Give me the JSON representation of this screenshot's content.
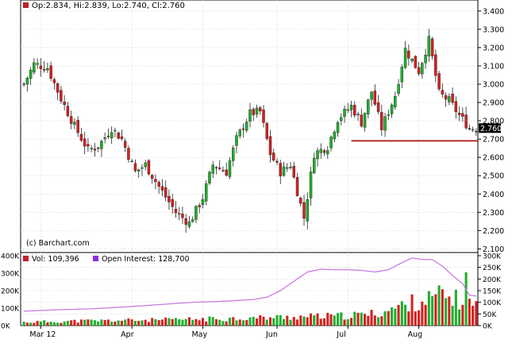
{
  "legend_top": {
    "text": "Op:2.834, Hi:2.839, Lo:2.740, Cl:2.760",
    "swatch_color": "#c0202a"
  },
  "legend_bottom": {
    "volume_text": "Vol: 109,396",
    "oi_text": "Open Interest: 128,700",
    "volume_swatch_color": "#c0202a",
    "oi_swatch_color": "#8a2be2"
  },
  "copyright": "(c) Barchart.com",
  "last_price_label": "2.760",
  "colors": {
    "up": "#1fae2c",
    "down": "#d42020",
    "wick": "#222222",
    "grid": "#c8c8c8",
    "oi_line": "#c97ce0",
    "support_line": "#b52a2a",
    "frame": "#000000"
  },
  "chart_data": [
    {
      "type": "candlestick",
      "title": "",
      "y_ticks": [
        "2.100",
        "2.200",
        "2.300",
        "2.400",
        "2.500",
        "2.600",
        "2.700",
        "2.800",
        "2.900",
        "3.000",
        "3.100",
        "3.200",
        "3.300",
        "3.400"
      ],
      "ylim": [
        2.08,
        3.46
      ],
      "x_ticks": [
        {
          "label": "Mar 12",
          "index": 5
        },
        {
          "label": "Apr",
          "index": 32
        },
        {
          "label": "May",
          "index": 53
        },
        {
          "label": "Jun",
          "index": 75
        },
        {
          "label": "Jul",
          "index": 96
        },
        {
          "label": "Aug",
          "index": 117
        }
      ],
      "n_periods": 135,
      "support_level": 2.69,
      "last_price": 2.76,
      "pivots": [
        [
          0,
          3.0
        ],
        [
          3,
          3.11
        ],
        [
          7,
          3.09
        ],
        [
          11,
          2.92
        ],
        [
          15,
          2.77
        ],
        [
          19,
          2.64
        ],
        [
          22,
          2.66
        ],
        [
          26,
          2.76
        ],
        [
          29,
          2.7
        ],
        [
          33,
          2.52
        ],
        [
          36,
          2.56
        ],
        [
          40,
          2.44
        ],
        [
          45,
          2.3
        ],
        [
          49,
          2.24
        ],
        [
          53,
          2.38
        ],
        [
          56,
          2.56
        ],
        [
          60,
          2.52
        ],
        [
          63,
          2.7
        ],
        [
          67,
          2.84
        ],
        [
          70,
          2.85
        ],
        [
          73,
          2.62
        ],
        [
          76,
          2.52
        ],
        [
          79,
          2.56
        ],
        [
          83,
          2.27
        ],
        [
          86,
          2.62
        ],
        [
          90,
          2.66
        ],
        [
          93,
          2.81
        ],
        [
          97,
          2.88
        ],
        [
          100,
          2.79
        ],
        [
          103,
          2.96
        ],
        [
          106,
          2.76
        ],
        [
          110,
          2.94
        ],
        [
          113,
          3.19
        ],
        [
          117,
          3.07
        ],
        [
          120,
          3.24
        ],
        [
          123,
          2.95
        ],
        [
          126,
          2.91
        ],
        [
          129,
          2.83
        ],
        [
          132,
          2.76
        ],
        [
          134,
          2.76
        ]
      ]
    },
    {
      "type": "bar+line",
      "series": [
        {
          "name": "Vol",
          "type": "bar",
          "indicator": "volume"
        },
        {
          "name": "Open Interest",
          "type": "line",
          "indicator": "open_interest"
        }
      ],
      "left_ticks": [
        "0K",
        "100K",
        "200K",
        "300K",
        "400K"
      ],
      "right_ticks": [
        "0K",
        "50K",
        "100K",
        "150K",
        "200K",
        "250K",
        "300K"
      ],
      "left_ylim": [
        0,
        400
      ],
      "right_ylim": [
        0,
        300
      ],
      "oi_pivots": [
        [
          0,
          62
        ],
        [
          10,
          68
        ],
        [
          20,
          72
        ],
        [
          30,
          80
        ],
        [
          40,
          90
        ],
        [
          50,
          100
        ],
        [
          60,
          105
        ],
        [
          68,
          112
        ],
        [
          72,
          122
        ],
        [
          76,
          150
        ],
        [
          80,
          190
        ],
        [
          84,
          230
        ],
        [
          88,
          242
        ],
        [
          92,
          240
        ],
        [
          96,
          240
        ],
        [
          100,
          237
        ],
        [
          104,
          230
        ],
        [
          108,
          240
        ],
        [
          112,
          270
        ],
        [
          115,
          290
        ],
        [
          118,
          284
        ],
        [
          121,
          283
        ],
        [
          124,
          255
        ],
        [
          127,
          215
        ],
        [
          130,
          180
        ],
        [
          132,
          130
        ],
        [
          134,
          127
        ]
      ],
      "volume_pivots": [
        [
          0,
          20
        ],
        [
          20,
          28
        ],
        [
          40,
          32
        ],
        [
          60,
          40
        ],
        [
          80,
          50
        ],
        [
          95,
          55
        ],
        [
          105,
          70
        ],
        [
          110,
          100
        ],
        [
          115,
          130
        ],
        [
          120,
          150
        ],
        [
          124,
          175
        ],
        [
          127,
          150
        ],
        [
          130,
          140
        ],
        [
          134,
          115
        ]
      ],
      "volume_spike": {
        "index": 131,
        "value": 305
      }
    }
  ]
}
